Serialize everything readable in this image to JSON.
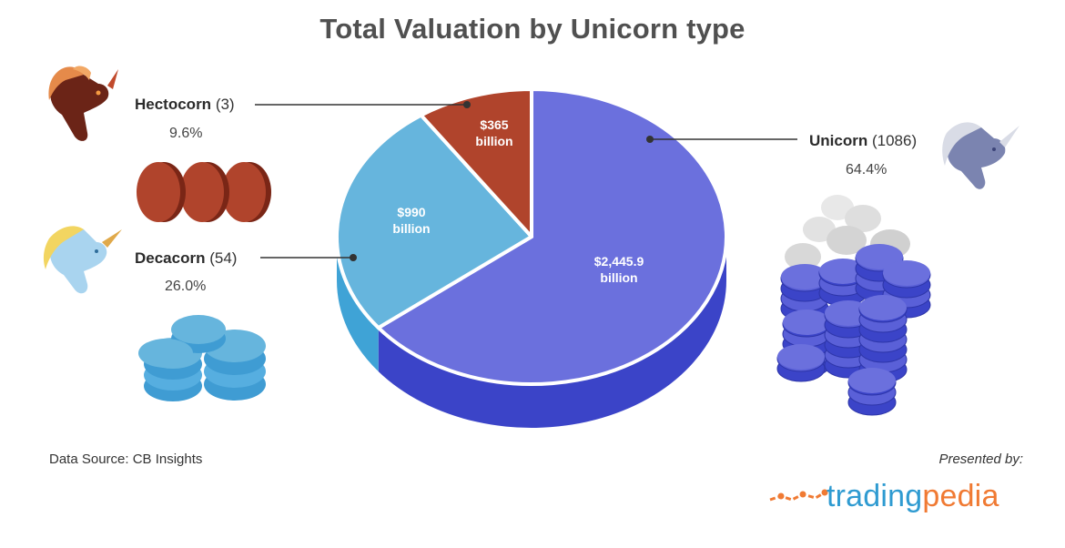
{
  "chart_data": {
    "type": "pie",
    "title": "Total Valuation by Unicorn type",
    "slices": [
      {
        "name": "Unicorn",
        "count": "(1086)",
        "percent": "64.4%",
        "value_line1": "$2,445.9",
        "value_line2": "billion",
        "value": 2445.9,
        "fraction": 0.644,
        "color": "#6b70dd",
        "side": "#3b44c8"
      },
      {
        "name": "Decacorn",
        "count": "(54)",
        "percent": "26.0%",
        "value_line1": "$990",
        "value_line2": "billion",
        "value": 990,
        "fraction": 0.26,
        "color": "#66b5dd",
        "side": "#3fa3d6"
      },
      {
        "name": "Hectocorn",
        "count": "(3)",
        "percent": "9.6%",
        "value_line1": "$365",
        "value_line2": "billion",
        "value": 365,
        "fraction": 0.096,
        "color": "#b0442c",
        "side": "#8a2e1c"
      }
    ]
  },
  "source": "Data Source: CB Insights",
  "presented_by": "Presented by:",
  "brand": {
    "part1": "trading",
    "part2": "pedia"
  }
}
